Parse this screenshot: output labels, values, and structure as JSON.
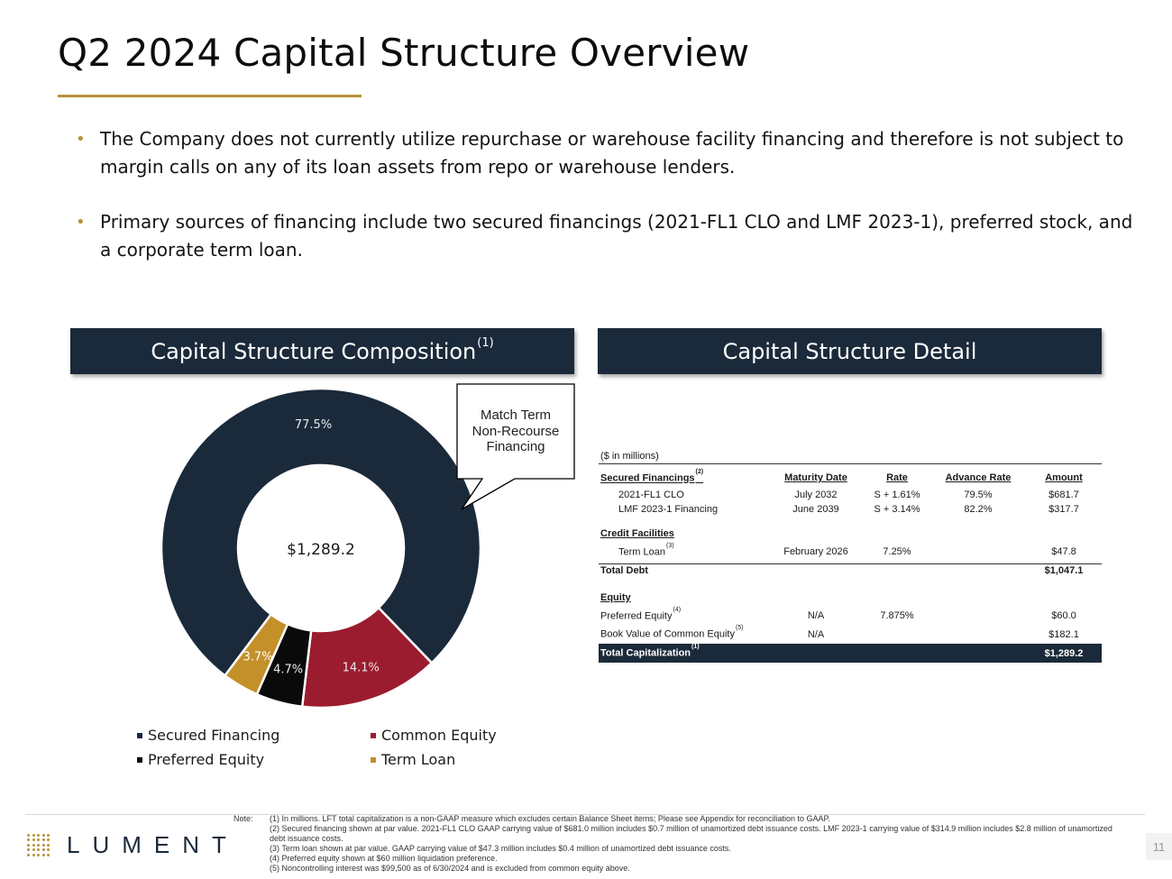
{
  "title": "Q2 2024 Capital Structure Overview",
  "bullets": [
    "The Company does not currently utilize repurchase or warehouse facility financing and therefore is not subject to margin calls on any of its loan assets from repo or warehouse lenders.",
    "Primary sources of financing include two secured financings (2021-FL1 CLO and LMF 2023-1), preferred stock, and a corporate term loan."
  ],
  "composition": {
    "header": "Capital Structure Composition",
    "header_sup": "(1)",
    "center_label": "$1,289.2",
    "callout": [
      "Match Term",
      "Non-Recourse",
      "Financing"
    ],
    "colors": {
      "secured": "#1b2a3a",
      "common": "#9b1c2e",
      "preferred": "#0a0a0a",
      "term": "#c4902a"
    }
  },
  "chart_data": {
    "type": "pie",
    "title": "",
    "total_label": "$1,289.2",
    "slices": [
      {
        "name": "Secured Financing",
        "value": 77.5,
        "label": "77.5%",
        "color": "#1b2a3a"
      },
      {
        "name": "Common Equity",
        "value": 14.1,
        "label": "14.1%",
        "color": "#9b1c2e"
      },
      {
        "name": "Preferred Equity",
        "value": 4.7,
        "label": "4.7%",
        "color": "#0a0a0a"
      },
      {
        "name": "Term Loan",
        "value": 3.7,
        "label": "3.7%",
        "color": "#c4902a"
      }
    ],
    "legend": [
      "Secured Financing",
      "Common Equity",
      "Preferred Equity",
      "Term Loan"
    ]
  },
  "detail": {
    "header": "Capital Structure Detail",
    "unit_note": "($ in millions)",
    "columns": {
      "label": "Secured Financings",
      "label_sup": "(2)",
      "maturity": "Maturity Date",
      "rate": "Rate",
      "advance": "Advance Rate",
      "amount": "Amount"
    },
    "secured_rows": [
      {
        "label": "2021-FL1 CLO",
        "maturity": "July 2032",
        "rate": "S + 1.61%",
        "advance": "79.5%",
        "amount": "$681.7"
      },
      {
        "label": "LMF 2023-1 Financing",
        "maturity": "June 2039",
        "rate": "S + 3.14%",
        "advance": "82.2%",
        "amount": "$317.7"
      }
    ],
    "credit_title": "Credit Facilities",
    "term_loan": {
      "label": "Term Loan",
      "sup": "(3)",
      "maturity": "February 2026",
      "rate": "7.25%",
      "advance": "",
      "amount": "$47.8"
    },
    "total_debt": {
      "label": "Total Debt",
      "amount": "$1,047.1"
    },
    "equity_title": "Equity",
    "preferred": {
      "label": "Preferred Equity",
      "sup": "(4)",
      "maturity": "N/A",
      "rate": "7.875%",
      "advance": "",
      "amount": "$60.0"
    },
    "common": {
      "label": "Book Value of Common Equity",
      "sup": "(5)",
      "maturity": "N/A",
      "rate": "",
      "advance": "",
      "amount": "$182.1"
    },
    "total_cap": {
      "label": "Total Capitalization",
      "sup": "(1)",
      "amount": "$1,289.2"
    }
  },
  "footer": {
    "logo": "LUMENT",
    "note_label": "Note:",
    "notes": [
      "(1) In millions. LFT total capitalization is a non-GAAP measure which excludes certain Balance Sheet items; Please see Appendix for reconciliation to GAAP.",
      "(2) Secured financing shown at par value. 2021-FL1 CLO GAAP carrying value of $681.0 million includes $0.7 million of unamortized debt issuance costs. LMF 2023-1 carrying value of $314.9 million includes $2.8 million of unamortized debt issuance costs.",
      "(3) Term loan shown at par value. GAAP carrying value of $47.3 million includes $0.4 million of unamortized debt issuance costs.",
      "(4) Preferred equity shown at $60 million liquidation preference.",
      "(5) Noncontrolling interest was $99,500 as of 6/30/2024 and is excluded from common equity above."
    ],
    "page_number": "11"
  }
}
